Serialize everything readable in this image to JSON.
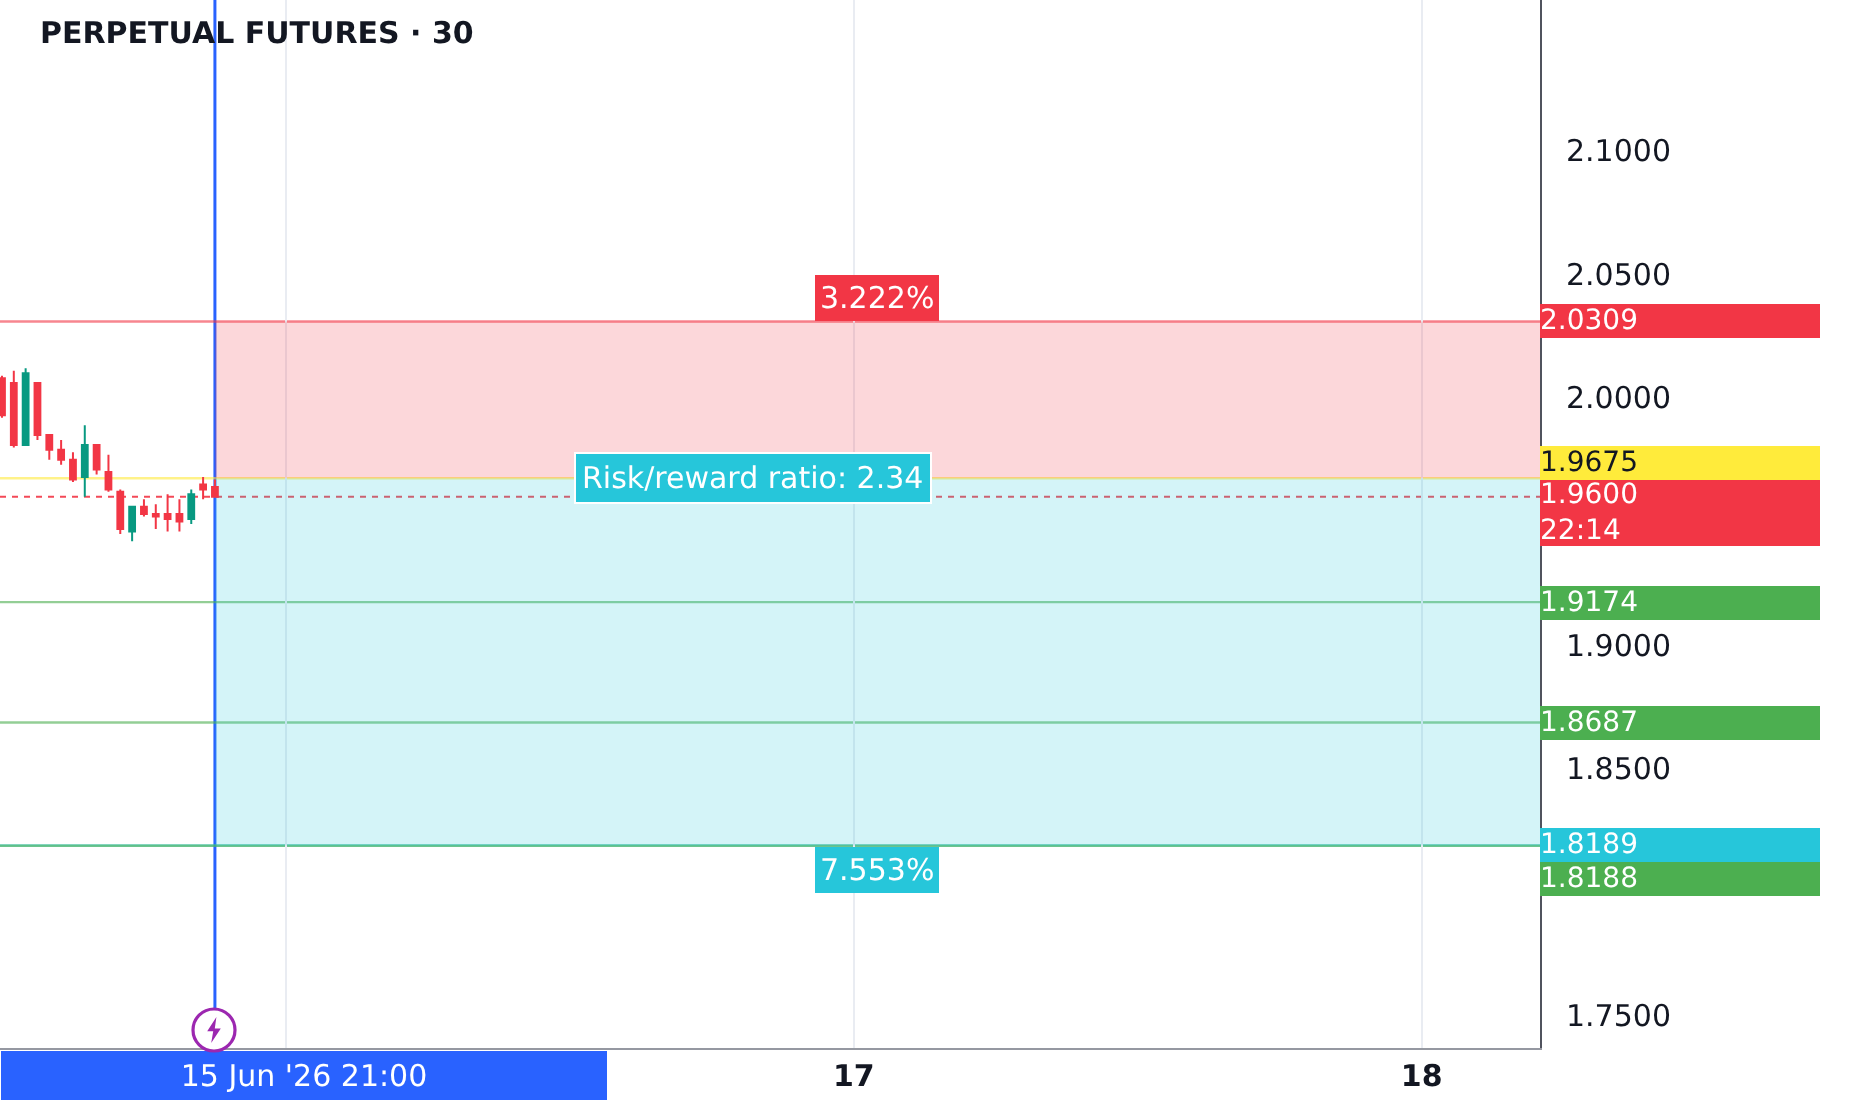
{
  "chart_data": {
    "type": "candlestick",
    "title": "PERPETUAL FUTURES · 30",
    "x": [
      "2026-06-15T12:00",
      "2026-06-15T12:30",
      "2026-06-15T13:00",
      "2026-06-15T13:30",
      "2026-06-15T14:00",
      "2026-06-15T14:30",
      "2026-06-15T15:00",
      "2026-06-15T15:30",
      "2026-06-15T16:00",
      "2026-06-15T16:30",
      "2026-06-15T17:00",
      "2026-06-15T17:30",
      "2026-06-15T18:00",
      "2026-06-15T18:30",
      "2026-06-15T19:00",
      "2026-06-15T19:30",
      "2026-06-15T20:00",
      "2026-06-15T20:30",
      "2026-06-15T21:00"
    ],
    "ohlc": [
      [
        2.008,
        2.009,
        1.992,
        1.993
      ],
      [
        2.006,
        2.011,
        1.98,
        1.981
      ],
      [
        1.981,
        2.012,
        1.981,
        2.01
      ],
      [
        2.006,
        2.006,
        1.983,
        1.985
      ],
      [
        1.985,
        1.985,
        1.975,
        1.979
      ],
      [
        1.979,
        1.983,
        1.973,
        1.975
      ],
      [
        1.975,
        1.978,
        1.966,
        1.967
      ],
      [
        1.968,
        1.989,
        1.96,
        1.981
      ],
      [
        1.981,
        1.981,
        1.969,
        1.971
      ],
      [
        1.97,
        1.977,
        1.962,
        1.963
      ],
      [
        1.962,
        1.963,
        1.945,
        1.947
      ],
      [
        1.946,
        1.956,
        1.942,
        1.956
      ],
      [
        1.956,
        1.959,
        1.952,
        1.953
      ],
      [
        1.953,
        1.957,
        1.947,
        1.952
      ],
      [
        1.953,
        1.961,
        1.946,
        1.951
      ],
      [
        1.953,
        1.959,
        1.946,
        1.95
      ],
      [
        1.951,
        1.963,
        1.949,
        1.961
      ],
      [
        1.965,
        1.968,
        1.959,
        1.963
      ],
      [
        1.964,
        1.967,
        1.96,
        1.96
      ]
    ],
    "colors": [
      "#f23645",
      "#f23645",
      "#089981",
      "#f23645",
      "#f23645",
      "#f23645",
      "#f23645",
      "#089981",
      "#f23645",
      "#f23645",
      "#f23645",
      "#089981",
      "#f23645",
      "#f23645",
      "#f23645",
      "#f23645",
      "#089981",
      "#f23645",
      "#f23645"
    ],
    "xlim": [
      "2026-06-15T11:55",
      "2026-06-18T05:00"
    ],
    "xticks": [
      {
        "value": "2026-06-16",
        "label": null
      },
      {
        "value": "2026-06-17",
        "label": "17"
      },
      {
        "value": "2026-06-18",
        "label": "18"
      }
    ],
    "ylim": [
      1.737,
      2.161
    ],
    "yticks": [
      {
        "value": 1.75,
        "label": "1.7500"
      },
      {
        "value": 1.85,
        "label": "1.8500"
      },
      {
        "value": 1.9,
        "label": "1.9000"
      },
      {
        "value": 2.0,
        "label": "2.0000"
      },
      {
        "value": 2.05,
        "label": "2.0500"
      },
      {
        "value": 2.1,
        "label": "2.1000"
      }
    ],
    "grid": "x",
    "ref_lines": [
      {
        "axis": "x",
        "value": "2026-06-15T21:00",
        "label": "15 Jun '26 21:00",
        "color": "#2962ff"
      },
      {
        "axis": "y",
        "value": 1.96,
        "label": "1.9600\n22:14",
        "color": "#f23645",
        "line_style": "dotted"
      },
      {
        "axis": "y",
        "value": 2.0309,
        "label": "2.0309",
        "color": "#f23645"
      },
      {
        "axis": "y",
        "value": 1.8189,
        "label": "1.8189",
        "color": "#26c6da"
      },
      {
        "axis": "y",
        "value": 1.9675,
        "label": "1.9675",
        "color": "#ffeb3b"
      },
      {
        "axis": "y",
        "value": 1.9174,
        "label": "1.9174",
        "color": "#4caf50"
      },
      {
        "axis": "y",
        "value": 1.8687,
        "label": "1.8687",
        "color": "#4caf50"
      },
      {
        "axis": "y",
        "value": 1.8188,
        "label": "1.8188",
        "color": "#4caf50"
      }
    ],
    "bands": [
      {
        "axis": "y",
        "from": 1.9675,
        "to": 2.0309,
        "label": "3.222%",
        "color": "#f23645"
      },
      {
        "axis": "y",
        "from": 1.9675,
        "to": 1.8189,
        "label": "7.553%",
        "color": "#26c6da"
      }
    ],
    "annotations": [
      {
        "text": "Risk/reward ratio: 2.34",
        "x": "2026-06-16T19:45",
        "y": 1.9675
      }
    ]
  }
}
